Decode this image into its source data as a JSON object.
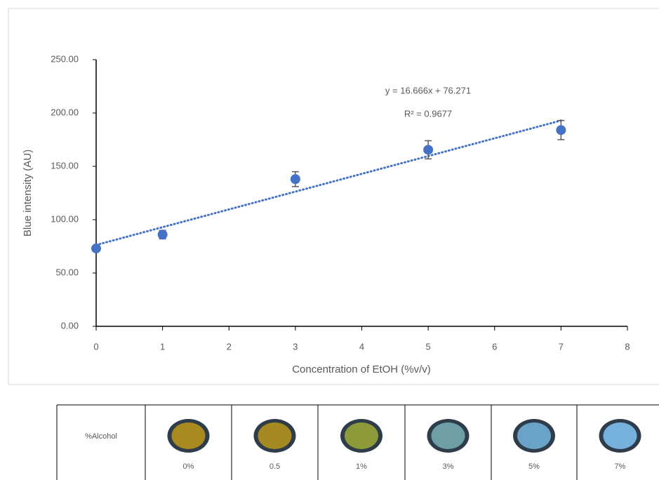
{
  "chart_data": {
    "type": "scatter",
    "x_label": "Concentration of EtOH (%v/v)",
    "y_label": "Blue intensity (AU)",
    "x": [
      0,
      1,
      3,
      5,
      7
    ],
    "values": [
      73,
      86,
      138,
      165.5,
      184
    ],
    "errors": [
      2,
      4,
      7,
      8.5,
      9
    ],
    "color": "#4472c4",
    "error_color": "#595959",
    "xlim": [
      0,
      8
    ],
    "xticks": [
      0,
      1,
      2,
      3,
      4,
      5,
      6,
      7,
      8
    ],
    "ylim": [
      0,
      250
    ],
    "yticks": [
      {
        "value": 0,
        "label": "0.00"
      },
      {
        "value": 50,
        "label": "50.00"
      },
      {
        "value": 100,
        "label": "100.00"
      },
      {
        "value": 150,
        "label": "150.00"
      },
      {
        "value": 200,
        "label": "200.00"
      },
      {
        "value": 250,
        "label": "250.00"
      }
    ],
    "grid": false,
    "trendline": {
      "slope": 16.666,
      "intercept": 76.271,
      "equation": "y = 16.666x + 76.271",
      "r2": "R² = 0.9677",
      "color": "#4472c4"
    }
  },
  "table": {
    "header": "%Alcohol",
    "columns": [
      {
        "label": "0%",
        "color": "#a88a1e"
      },
      {
        "label": "0.5",
        "color": "#a48a20"
      },
      {
        "label": "1%",
        "color": "#8c9a3a"
      },
      {
        "label": "3%",
        "color": "#6f9fa6"
      },
      {
        "label": "5%",
        "color": "#6aa3c8"
      },
      {
        "label": "7%",
        "color": "#76b0dc"
      }
    ]
  }
}
